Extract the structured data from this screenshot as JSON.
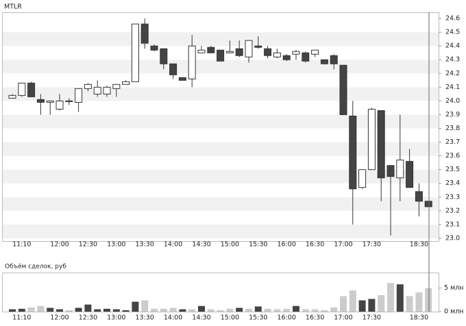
{
  "chart_data": [
    {
      "type": "candlestick",
      "title": "MTLR",
      "categories": [
        null,
        "11:10",
        null,
        null,
        null,
        "12:00",
        null,
        null,
        "12:30",
        null,
        null,
        "13:00",
        null,
        null,
        "13:30",
        null,
        null,
        "14:00",
        null,
        null,
        "14:30",
        null,
        null,
        "15:00",
        null,
        null,
        "15:30",
        null,
        null,
        "16:00",
        null,
        null,
        "16:30",
        null,
        null,
        "17:00",
        null,
        null,
        "17:30",
        null,
        null,
        null,
        null,
        "18:30",
        null
      ],
      "open": [
        24.02,
        24.04,
        24.13,
        24.01,
        23.99,
        23.94,
        24.0,
        23.99,
        24.09,
        24.05,
        24.05,
        24.09,
        24.12,
        24.14,
        24.56,
        24.4,
        24.38,
        24.27,
        24.17,
        24.16,
        24.35,
        24.39,
        24.37,
        24.35,
        24.38,
        24.32,
        24.4,
        24.38,
        24.32,
        24.33,
        24.34,
        24.35,
        24.34,
        24.3,
        24.33,
        24.26,
        23.89,
        23.37,
        23.5,
        23.93,
        23.53,
        23.44,
        23.56,
        23.34,
        23.27
      ],
      "high": [
        24.05,
        24.13,
        24.14,
        24.05,
        24.0,
        24.05,
        24.02,
        24.09,
        24.13,
        24.15,
        24.11,
        24.12,
        24.15,
        24.56,
        24.6,
        24.41,
        24.38,
        24.27,
        24.17,
        24.48,
        24.4,
        24.4,
        24.37,
        24.44,
        24.44,
        24.44,
        24.47,
        24.4,
        24.38,
        24.34,
        24.37,
        24.36,
        24.37,
        24.3,
        24.34,
        24.26,
        24.0,
        23.5,
        23.95,
        23.93,
        23.53,
        23.9,
        23.65,
        23.4,
        23.27
      ],
      "low": [
        24.02,
        24.03,
        24.03,
        23.9,
        23.9,
        23.93,
        23.97,
        23.92,
        24.07,
        24.03,
        24.03,
        24.03,
        24.12,
        24.14,
        24.38,
        24.36,
        24.23,
        24.16,
        24.15,
        24.1,
        24.35,
        24.35,
        24.29,
        24.35,
        24.32,
        24.28,
        24.38,
        24.31,
        24.31,
        24.29,
        24.3,
        24.28,
        24.32,
        24.27,
        24.23,
        23.9,
        23.1,
        23.36,
        23.5,
        23.27,
        23.02,
        23.27,
        23.37,
        23.16,
        23.23
      ],
      "close": [
        24.04,
        24.13,
        24.03,
        23.99,
        24.0,
        24.0,
        24.0,
        24.09,
        24.12,
        24.1,
        24.1,
        24.12,
        24.14,
        24.56,
        24.42,
        24.37,
        24.27,
        24.19,
        24.15,
        24.4,
        24.37,
        24.35,
        24.29,
        24.36,
        24.33,
        24.44,
        24.39,
        24.33,
        24.35,
        24.3,
        24.36,
        24.29,
        24.37,
        24.27,
        24.27,
        23.9,
        23.36,
        23.5,
        23.94,
        23.44,
        23.45,
        23.57,
        23.37,
        23.27,
        23.23
      ],
      "up_color": "#ffffff",
      "down_color": "#444444",
      "ylim": [
        22.98,
        24.645
      ],
      "yticks": [
        {
          "value": 23,
          "label": "23.0"
        },
        23.1,
        23.2,
        23.3,
        23.4,
        23.5,
        23.6,
        23.7,
        23.8,
        23.9,
        {
          "value": 24,
          "label": "24.0"
        },
        24.1,
        24.2,
        24.3,
        24.4,
        24.5,
        24.6
      ],
      "grid": true
    },
    {
      "type": "bar",
      "title": "Объём сделок, руб",
      "categories": [
        null,
        "11:10",
        null,
        null,
        null,
        "12:00",
        null,
        null,
        "12:30",
        null,
        null,
        "13:00",
        null,
        null,
        "13:30",
        null,
        null,
        "14:00",
        null,
        null,
        "14:30",
        null,
        null,
        "15:00",
        null,
        null,
        "15:30",
        null,
        null,
        "16:00",
        null,
        null,
        "16:30",
        null,
        null,
        "17:00",
        null,
        null,
        "17:30",
        null,
        null,
        null,
        null,
        "18:30",
        null
      ],
      "values": [
        0.5,
        0.6,
        0.9,
        1.2,
        0.8,
        0.5,
        0.3,
        0.8,
        1.5,
        0.5,
        0.6,
        0.5,
        0.3,
        2.1,
        2.4,
        0.6,
        0.6,
        0.8,
        0.5,
        0.5,
        1.2,
        0.5,
        0.3,
        0.6,
        0.8,
        0.6,
        1.1,
        0.6,
        0.5,
        0.6,
        1.2,
        0.5,
        0.5,
        0.3,
        0.9,
        3.3,
        4.5,
        2.4,
        2.7,
        3.5,
        6.1,
        5.8,
        3.3,
        4.1,
        5.0
      ],
      "colors": [
        "#444",
        "#444",
        "#ccc",
        "#ccc",
        "#444",
        "#444",
        "#ccc",
        "#444",
        "#444",
        "#444",
        "#444",
        "#444",
        "#444",
        "#444",
        "#ccc",
        "#ccc",
        "#ccc",
        "#ccc",
        "#444",
        "#ccc",
        "#444",
        "#ccc",
        "#ccc",
        "#ccc",
        "#444",
        "#ccc",
        "#444",
        "#ccc",
        "#ccc",
        "#ccc",
        "#444",
        "#ccc",
        "#ccc",
        "#ccc",
        "#ccc",
        "#ccc",
        "#ccc",
        "#444",
        "#444",
        "#ccc",
        "#ccc",
        "#444",
        "#ccc",
        "#ccc",
        "#ccc"
      ],
      "ylim": [
        0,
        8.3
      ],
      "yticks": [
        {
          "value": 0,
          "label": "0 млн"
        },
        {
          "value": 5,
          "label": "5 млн"
        }
      ]
    }
  ]
}
